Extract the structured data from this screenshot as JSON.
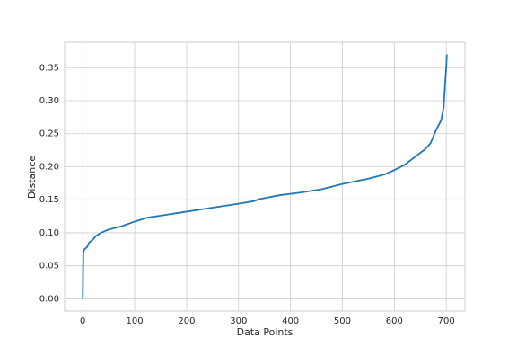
{
  "chart_data": {
    "type": "line",
    "x_label": "Data Points",
    "y_label": "Distance",
    "x": [
      0,
      1,
      3,
      8,
      12,
      20,
      25,
      35,
      50,
      75,
      100,
      125,
      150,
      200,
      250,
      300,
      330,
      340,
      380,
      420,
      460,
      500,
      550,
      580,
      600,
      620,
      640,
      660,
      670,
      680,
      690,
      695,
      698,
      700,
      701
    ],
    "series": [
      {
        "color": "#1f77b4",
        "values": [
          0,
          0.07,
          0.075,
          0.078,
          0.085,
          0.09,
          0.095,
          0.1,
          0.105,
          0.11,
          0.117,
          0.123,
          0.126,
          0.132,
          0.138,
          0.144,
          0.148,
          0.151,
          0.157,
          0.161,
          0.166,
          0.174,
          0.182,
          0.188,
          0.195,
          0.203,
          0.215,
          0.227,
          0.236,
          0.255,
          0.27,
          0.29,
          0.33,
          0.35,
          0.37
        ]
      }
    ],
    "xlim": [
      -35,
      736
    ],
    "ylim": [
      -0.0185,
      0.3885
    ],
    "xticks": [
      0,
      100,
      200,
      300,
      400,
      500,
      600,
      700
    ],
    "yticks": [
      {
        "value": 0,
        "label": "0.00"
      },
      {
        "value": 0.05,
        "label": "0.05"
      },
      {
        "value": 0.1,
        "label": "0.10"
      },
      {
        "value": 0.15,
        "label": "0.15"
      },
      {
        "value": 0.2,
        "label": "0.20"
      },
      {
        "value": 0.25,
        "label": "0.25"
      },
      {
        "value": 0.3,
        "label": "0.30"
      },
      {
        "value": 0.35,
        "label": "0.35"
      }
    ],
    "grid": true
  }
}
